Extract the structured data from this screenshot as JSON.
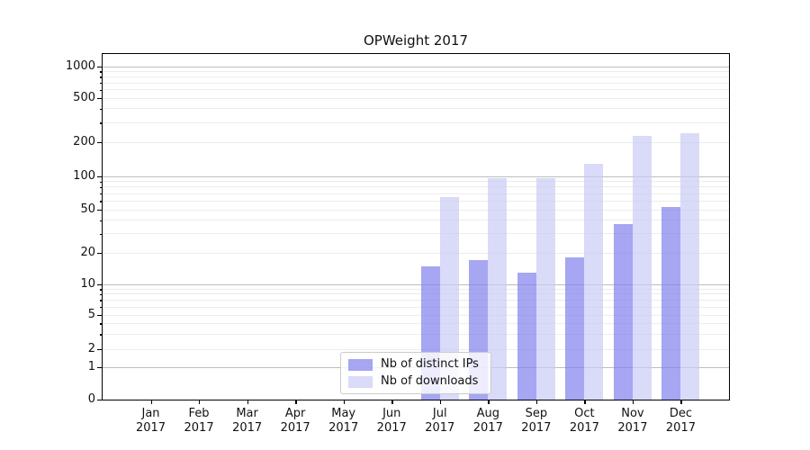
{
  "title": "OPWeight 2017",
  "chart_data": {
    "type": "bar",
    "title": "OPWeight 2017",
    "x_categories": [
      {
        "month": "Jan",
        "year": "2017"
      },
      {
        "month": "Feb",
        "year": "2017"
      },
      {
        "month": "Mar",
        "year": "2017"
      },
      {
        "month": "Apr",
        "year": "2017"
      },
      {
        "month": "May",
        "year": "2017"
      },
      {
        "month": "Jun",
        "year": "2017"
      },
      {
        "month": "Jul",
        "year": "2017"
      },
      {
        "month": "Aug",
        "year": "2017"
      },
      {
        "month": "Sep",
        "year": "2017"
      },
      {
        "month": "Oct",
        "year": "2017"
      },
      {
        "month": "Nov",
        "year": "2017"
      },
      {
        "month": "Dec",
        "year": "2017"
      }
    ],
    "series": [
      {
        "name": "Nb of distinct IPs",
        "color": "#8080ec",
        "opacity": 0.7,
        "values": [
          0,
          0,
          0,
          0,
          0,
          0,
          15,
          17,
          13,
          18,
          37,
          53
        ]
      },
      {
        "name": "Nb of downloads",
        "color": "#cbcbf6",
        "opacity": 0.7,
        "values": [
          0,
          0,
          0,
          0,
          0,
          0,
          65,
          97,
          97,
          130,
          230,
          240
        ]
      }
    ],
    "yscale": "symlog",
    "yticks": [
      0,
      1,
      2,
      5,
      10,
      20,
      50,
      100,
      200,
      500,
      1000
    ],
    "ytick_labels": [
      "0",
      "1",
      "2",
      "5",
      "10",
      "20",
      "50",
      "100",
      "200",
      "500",
      "1000"
    ],
    "ylim": [
      0,
      1300
    ],
    "grid": {
      "on": true,
      "major_color": "#bdbdbd",
      "minor_color": "#ececec"
    },
    "legend": {
      "entries": [
        "Nb of distinct IPs",
        "Nb of downloads"
      ],
      "position": "lower center inside"
    }
  }
}
